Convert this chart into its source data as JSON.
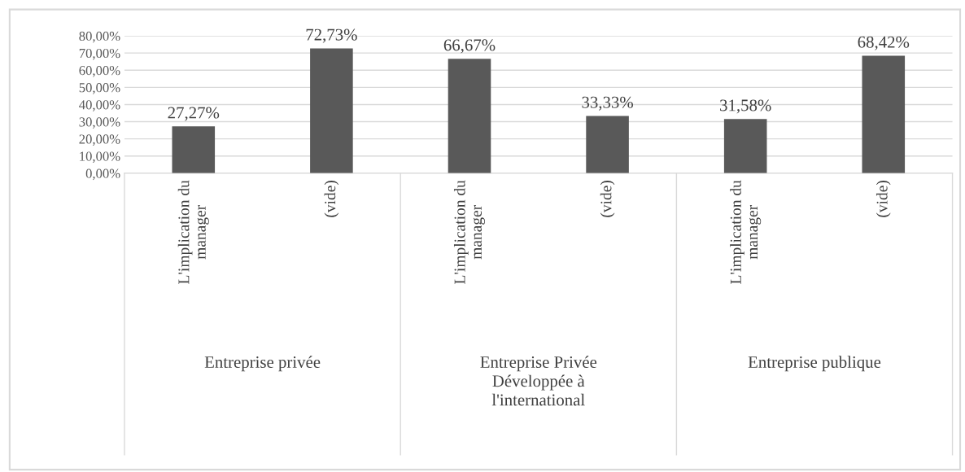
{
  "chart_data": {
    "type": "bar",
    "categories": [
      "L'implication du\nmanager",
      "(vide)",
      "L'implication du\nmanager",
      "(vide)",
      "L'implication du\nmanager",
      "(vide)"
    ],
    "values": [
      27.27,
      72.73,
      66.67,
      33.33,
      31.58,
      68.42
    ],
    "value_labels": [
      "27,27%",
      "72,73%",
      "66,67%",
      "33,33%",
      "31,58%",
      "68,42%"
    ],
    "color": "#595959",
    "ylim": [
      0,
      80
    ],
    "yticks": [
      {
        "value": 0,
        "label": "0,00%"
      },
      {
        "value": 10,
        "label": "10,00%"
      },
      {
        "value": 20,
        "label": "20,00%"
      },
      {
        "value": 30,
        "label": "30,00%"
      },
      {
        "value": 40,
        "label": "40,00%"
      },
      {
        "value": 50,
        "label": "50,00%"
      },
      {
        "value": 60,
        "label": "60,00%"
      },
      {
        "value": 70,
        "label": "70,00%"
      },
      {
        "value": 80,
        "label": "80,00%"
      }
    ],
    "grid": "y",
    "annotations": [
      "Entreprise privée",
      "Entreprise Privée\nDéveloppée à\nl'international",
      "Entreprise publique"
    ]
  }
}
